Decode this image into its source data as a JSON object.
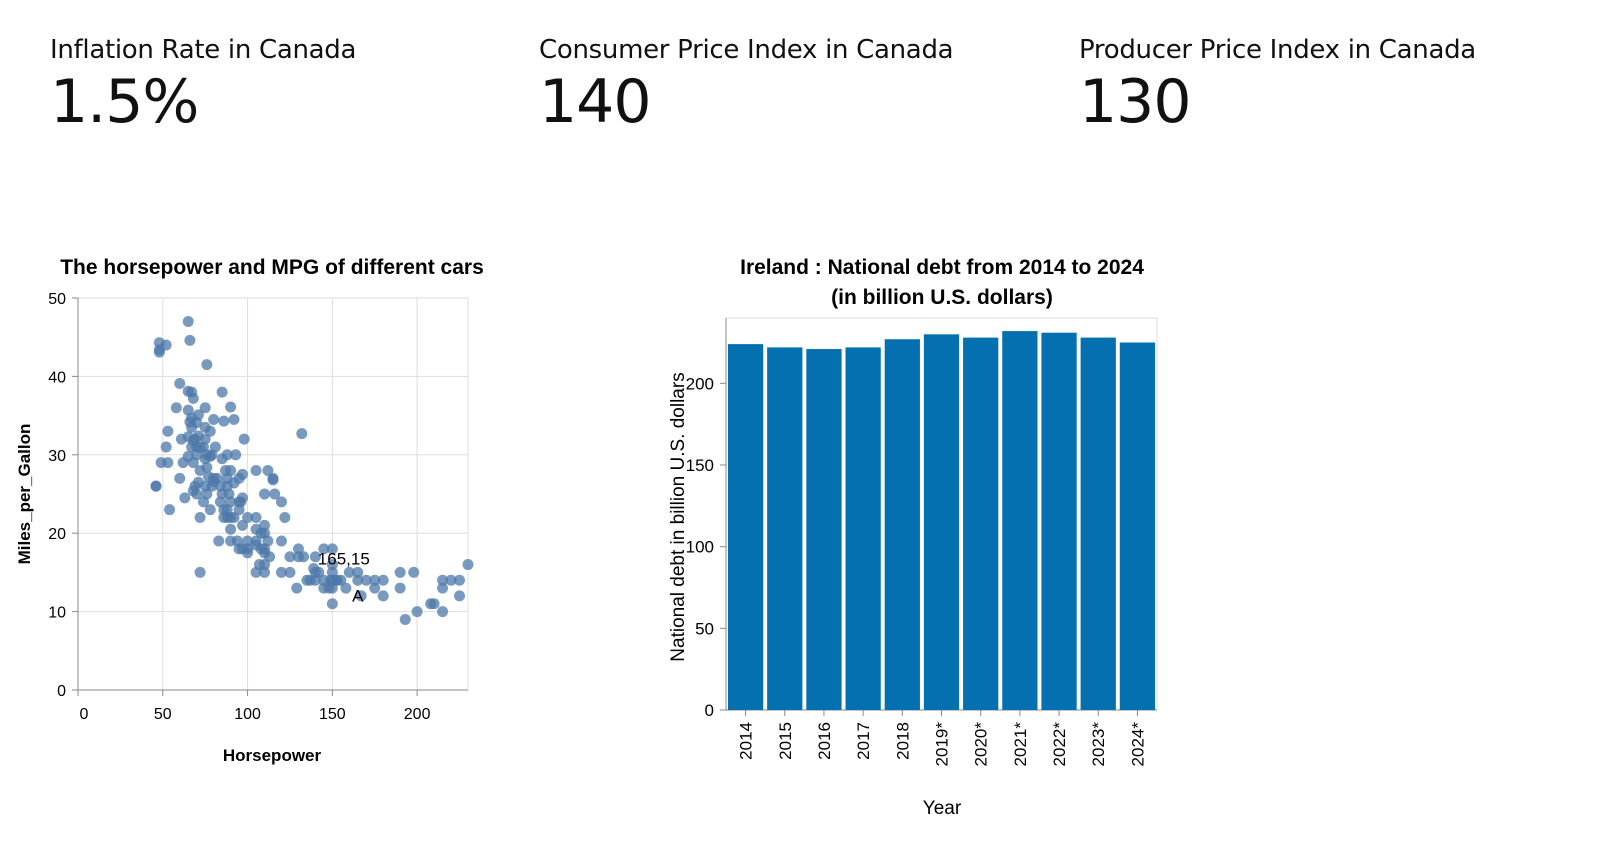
{
  "kpis": [
    {
      "label": "Inflation Rate in Canada",
      "value": "1.5%"
    },
    {
      "label": "Consumer Price Index in Canada",
      "value": "140"
    },
    {
      "label": "Producer Price Index in Canada",
      "value": "130"
    }
  ],
  "chart_data": [
    {
      "type": "scatter",
      "title": "The horsepower and MPG of different cars",
      "xlabel": "Horsepower",
      "ylabel": "Miles_per_Gallon",
      "xlim": [
        0,
        230
      ],
      "ylim": [
        0,
        50
      ],
      "xticks": [
        0,
        50,
        100,
        150,
        200
      ],
      "yticks": [
        0,
        10,
        20,
        30,
        40,
        50
      ],
      "grid": true,
      "point_color": "#4c78a8",
      "annotations": [
        {
          "text": "165,15",
          "x": 165,
          "y": 15
        },
        {
          "text": "A",
          "x": 165,
          "y": 15
        }
      ],
      "points": [
        [
          46,
          26
        ],
        [
          46,
          26
        ],
        [
          48,
          43.4
        ],
        [
          48,
          44.3
        ],
        [
          48,
          43.1
        ],
        [
          49,
          29
        ],
        [
          52,
          31
        ],
        [
          52,
          44
        ],
        [
          53,
          33
        ],
        [
          53,
          29
        ],
        [
          54,
          23
        ],
        [
          58,
          36
        ],
        [
          60,
          39.1
        ],
        [
          60,
          27
        ],
        [
          61,
          32
        ],
        [
          62,
          29
        ],
        [
          63,
          24.5
        ],
        [
          65,
          47
        ],
        [
          65,
          32.3
        ],
        [
          65,
          29.8
        ],
        [
          65,
          38.1
        ],
        [
          65,
          35.7
        ],
        [
          66,
          44.6
        ],
        [
          66,
          34.2
        ],
        [
          67,
          34.7
        ],
        [
          67,
          38
        ],
        [
          67,
          33.5
        ],
        [
          67,
          31
        ],
        [
          68,
          29
        ],
        [
          68,
          31.8
        ],
        [
          68,
          37.2
        ],
        [
          68,
          25.4
        ],
        [
          69,
          32
        ],
        [
          69,
          26
        ],
        [
          70,
          25
        ],
        [
          70,
          30
        ],
        [
          70,
          31
        ],
        [
          70,
          34.1
        ],
        [
          71,
          32.4
        ],
        [
          71,
          26.5
        ],
        [
          71,
          35.1
        ],
        [
          72,
          28
        ],
        [
          72,
          30.9
        ],
        [
          72,
          22
        ],
        [
          72,
          15
        ],
        [
          74,
          24
        ],
        [
          74,
          31
        ],
        [
          75,
          26
        ],
        [
          75,
          32
        ],
        [
          75,
          33.5
        ],
        [
          75,
          29.5
        ],
        [
          75,
          36
        ],
        [
          76,
          30
        ],
        [
          76,
          25
        ],
        [
          76,
          28.4
        ],
        [
          76,
          41.5
        ],
        [
          77,
          27.2
        ],
        [
          78,
          29.8
        ],
        [
          78,
          33
        ],
        [
          78,
          23
        ],
        [
          79,
          26
        ],
        [
          79,
          30
        ],
        [
          80,
          27
        ],
        [
          80,
          34.5
        ],
        [
          80,
          26.6
        ],
        [
          81,
          31
        ],
        [
          82,
          27
        ],
        [
          83,
          19
        ],
        [
          84,
          24
        ],
        [
          84,
          26
        ],
        [
          85,
          25
        ],
        [
          85,
          38
        ],
        [
          85,
          29.5
        ],
        [
          86,
          22
        ],
        [
          86,
          34.3
        ],
        [
          86,
          23
        ],
        [
          87,
          28
        ],
        [
          88,
          26
        ],
        [
          88,
          23
        ],
        [
          88,
          30
        ],
        [
          88,
          27
        ],
        [
          88,
          22
        ],
        [
          89,
          25
        ],
        [
          90,
          28
        ],
        [
          90,
          24
        ],
        [
          90,
          22
        ],
        [
          90,
          36.1
        ],
        [
          90,
          20.5
        ],
        [
          90,
          19
        ],
        [
          92,
          22
        ],
        [
          92,
          26.4
        ],
        [
          92,
          34.5
        ],
        [
          93,
          30
        ],
        [
          94,
          19
        ],
        [
          95,
          24
        ],
        [
          95,
          27
        ],
        [
          95,
          18
        ],
        [
          95,
          23
        ],
        [
          96,
          24
        ],
        [
          97,
          18
        ],
        [
          97,
          21
        ],
        [
          97,
          27.5
        ],
        [
          97,
          24.5
        ],
        [
          98,
          32
        ],
        [
          100,
          19
        ],
        [
          100,
          18
        ],
        [
          100,
          22
        ],
        [
          100,
          17.5
        ],
        [
          105,
          15
        ],
        [
          105,
          19
        ],
        [
          105,
          20.5
        ],
        [
          105,
          22
        ],
        [
          105,
          18.5
        ],
        [
          105,
          28
        ],
        [
          107,
          16
        ],
        [
          108,
          18
        ],
        [
          108,
          20
        ],
        [
          110,
          16
        ],
        [
          110,
          21
        ],
        [
          110,
          18
        ],
        [
          110,
          25
        ],
        [
          110,
          20
        ],
        [
          110,
          17.5
        ],
        [
          110,
          15
        ],
        [
          112,
          19
        ],
        [
          112,
          28
        ],
        [
          113,
          17
        ],
        [
          115,
          26.8
        ],
        [
          115,
          27
        ],
        [
          116,
          25
        ],
        [
          120,
          24
        ],
        [
          120,
          19
        ],
        [
          120,
          15
        ],
        [
          122,
          22
        ],
        [
          125,
          15
        ],
        [
          125,
          17
        ],
        [
          129,
          13
        ],
        [
          130,
          17
        ],
        [
          130,
          18
        ],
        [
          132,
          32.7
        ],
        [
          133,
          17
        ],
        [
          135,
          14
        ],
        [
          137,
          14
        ],
        [
          139,
          15.5
        ],
        [
          140,
          15
        ],
        [
          140,
          14
        ],
        [
          140,
          17
        ],
        [
          142,
          15
        ],
        [
          145,
          13
        ],
        [
          145,
          14
        ],
        [
          145,
          18
        ],
        [
          148,
          13
        ],
        [
          149,
          14
        ],
        [
          150,
          11
        ],
        [
          150,
          13
        ],
        [
          150,
          14
        ],
        [
          150,
          15
        ],
        [
          150,
          16
        ],
        [
          150,
          18
        ],
        [
          152,
          14
        ],
        [
          153,
          14
        ],
        [
          155,
          14
        ],
        [
          158,
          13
        ],
        [
          160,
          15
        ],
        [
          165,
          14
        ],
        [
          165,
          15
        ],
        [
          167,
          12
        ],
        [
          170,
          14
        ],
        [
          175,
          13
        ],
        [
          175,
          14
        ],
        [
          180,
          12
        ],
        [
          180,
          14
        ],
        [
          190,
          15
        ],
        [
          190,
          13
        ],
        [
          193,
          9
        ],
        [
          198,
          15
        ],
        [
          200,
          10
        ],
        [
          208,
          11
        ],
        [
          210,
          11
        ],
        [
          215,
          14
        ],
        [
          215,
          10
        ],
        [
          215,
          13
        ],
        [
          220,
          14
        ],
        [
          225,
          14
        ],
        [
          225,
          12
        ],
        [
          230,
          16
        ]
      ]
    },
    {
      "type": "bar",
      "title": "Ireland : National debt from 2014 to 2024",
      "subtitle": "(in billion U.S. dollars)",
      "xlabel": "Year",
      "ylabel": "National debt in billion U.S. dollars",
      "ylim": [
        0,
        240
      ],
      "yticks": [
        0,
        50,
        100,
        150,
        200
      ],
      "grid": false,
      "bar_color": "#0570b0",
      "categories": [
        "2014",
        "2015",
        "2016",
        "2017",
        "2018",
        "2019*",
        "2020*",
        "2021*",
        "2022*",
        "2023*",
        "2024*"
      ],
      "values": [
        224,
        222,
        221,
        222,
        227,
        230,
        228,
        232,
        231,
        228,
        225
      ]
    }
  ]
}
